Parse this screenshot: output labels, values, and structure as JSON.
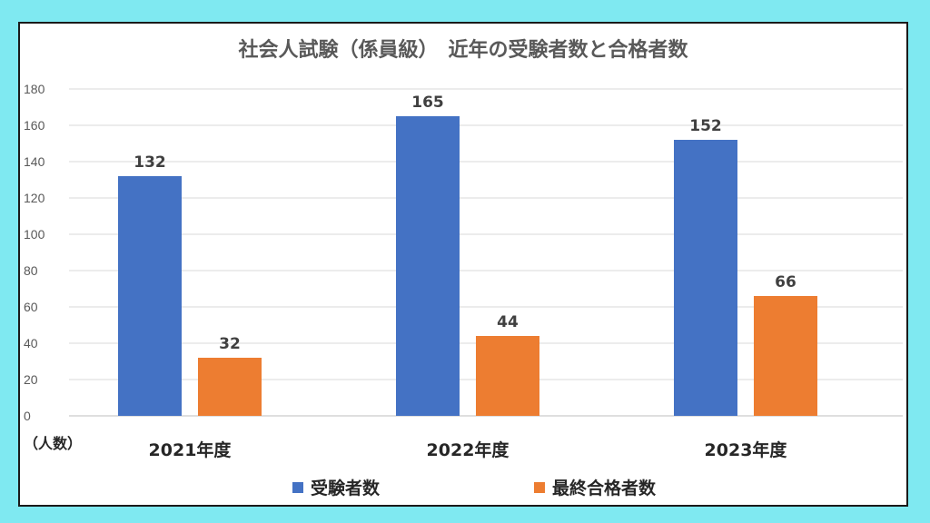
{
  "chart_data": {
    "type": "bar",
    "title": "社会人試験（係員級）　近年の受験者数と合格者数",
    "categories": [
      "2021年度",
      "2022年度",
      "2023年度"
    ],
    "series": [
      {
        "name": "受験者数",
        "values": [
          132,
          165,
          152
        ],
        "color": "#4472c4"
      },
      {
        "name": "最終合格者数",
        "values": [
          32,
          44,
          66
        ],
        "color": "#ed7d31"
      }
    ],
    "ylim": [
      0,
      180
    ],
    "yticks": [
      0,
      20,
      40,
      60,
      80,
      100,
      120,
      140,
      160,
      180
    ],
    "unit_label": "（人数）",
    "grid": true,
    "legend_position": "bottom"
  }
}
